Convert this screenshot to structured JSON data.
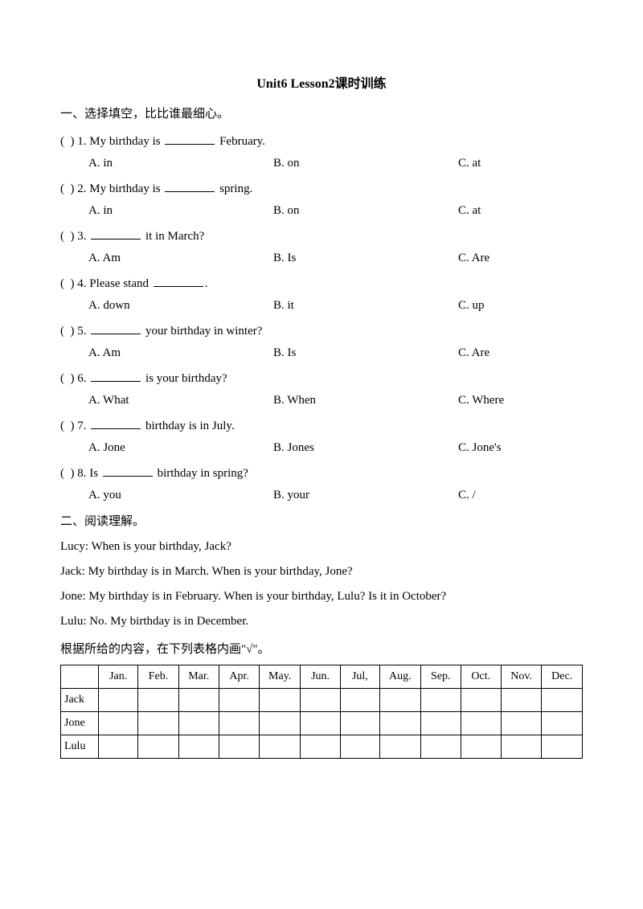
{
  "title": "Unit6 Lesson2课时训练",
  "section1": {
    "header": "一、选择填空，比比谁最细心。",
    "questions": [
      {
        "num": "1",
        "prompt_before": "My birthday is ",
        "prompt_after": " February.",
        "a": "A. in",
        "b": "B. on",
        "c": "C. at"
      },
      {
        "num": "2",
        "prompt_before": "My birthday is ",
        "prompt_after": " spring.",
        "a": "A. in",
        "b": "B. on",
        "c": "C. at"
      },
      {
        "num": "3",
        "prompt_before": "",
        "prompt_after": " it in March?",
        "a": "A. Am",
        "b": "B. Is",
        "c": "C. Are"
      },
      {
        "num": "4",
        "prompt_before": "Please stand ",
        "prompt_after": ".",
        "a": "A. down",
        "b": "B. it",
        "c": "C. up"
      },
      {
        "num": "5",
        "prompt_before": "",
        "prompt_after": " your birthday in winter?",
        "a": "A. Am",
        "b": "B. Is",
        "c": "C. Are"
      },
      {
        "num": "6",
        "prompt_before": "",
        "prompt_after": " is your birthday?",
        "a": "A. What",
        "b": "B. When",
        "c": "C. Where"
      },
      {
        "num": "7",
        "prompt_before": "",
        "prompt_after": " birthday is in July.",
        "a": "A. Jone",
        "b": "B. Jones",
        "c": "C. Jone's"
      },
      {
        "num": "8",
        "prompt_before": "Is ",
        "prompt_after": " birthday in spring?",
        "a": "A. you",
        "b": "B. your",
        "c": "C. /"
      }
    ]
  },
  "section2": {
    "header": "二、阅读理解。",
    "lines": [
      "Lucy: When is your birthday, Jack?",
      "Jack: My birthday is in March. When is your birthday, Jone?",
      "Jone: My birthday is in February. When is your birthday, Lulu? Is it in October?",
      "Lulu: No. My birthday is in December."
    ],
    "table_instruction": "根据所给的内容，在下列表格内画\"√\"。",
    "table": {
      "months": [
        "Jan.",
        "Feb.",
        "Mar.",
        "Apr.",
        "May.",
        "Jun.",
        "Jul,",
        "Aug.",
        "Sep.",
        "Oct.",
        "Nov.",
        "Dec."
      ],
      "rows": [
        "Jack",
        "Jone",
        "Lulu"
      ]
    }
  }
}
